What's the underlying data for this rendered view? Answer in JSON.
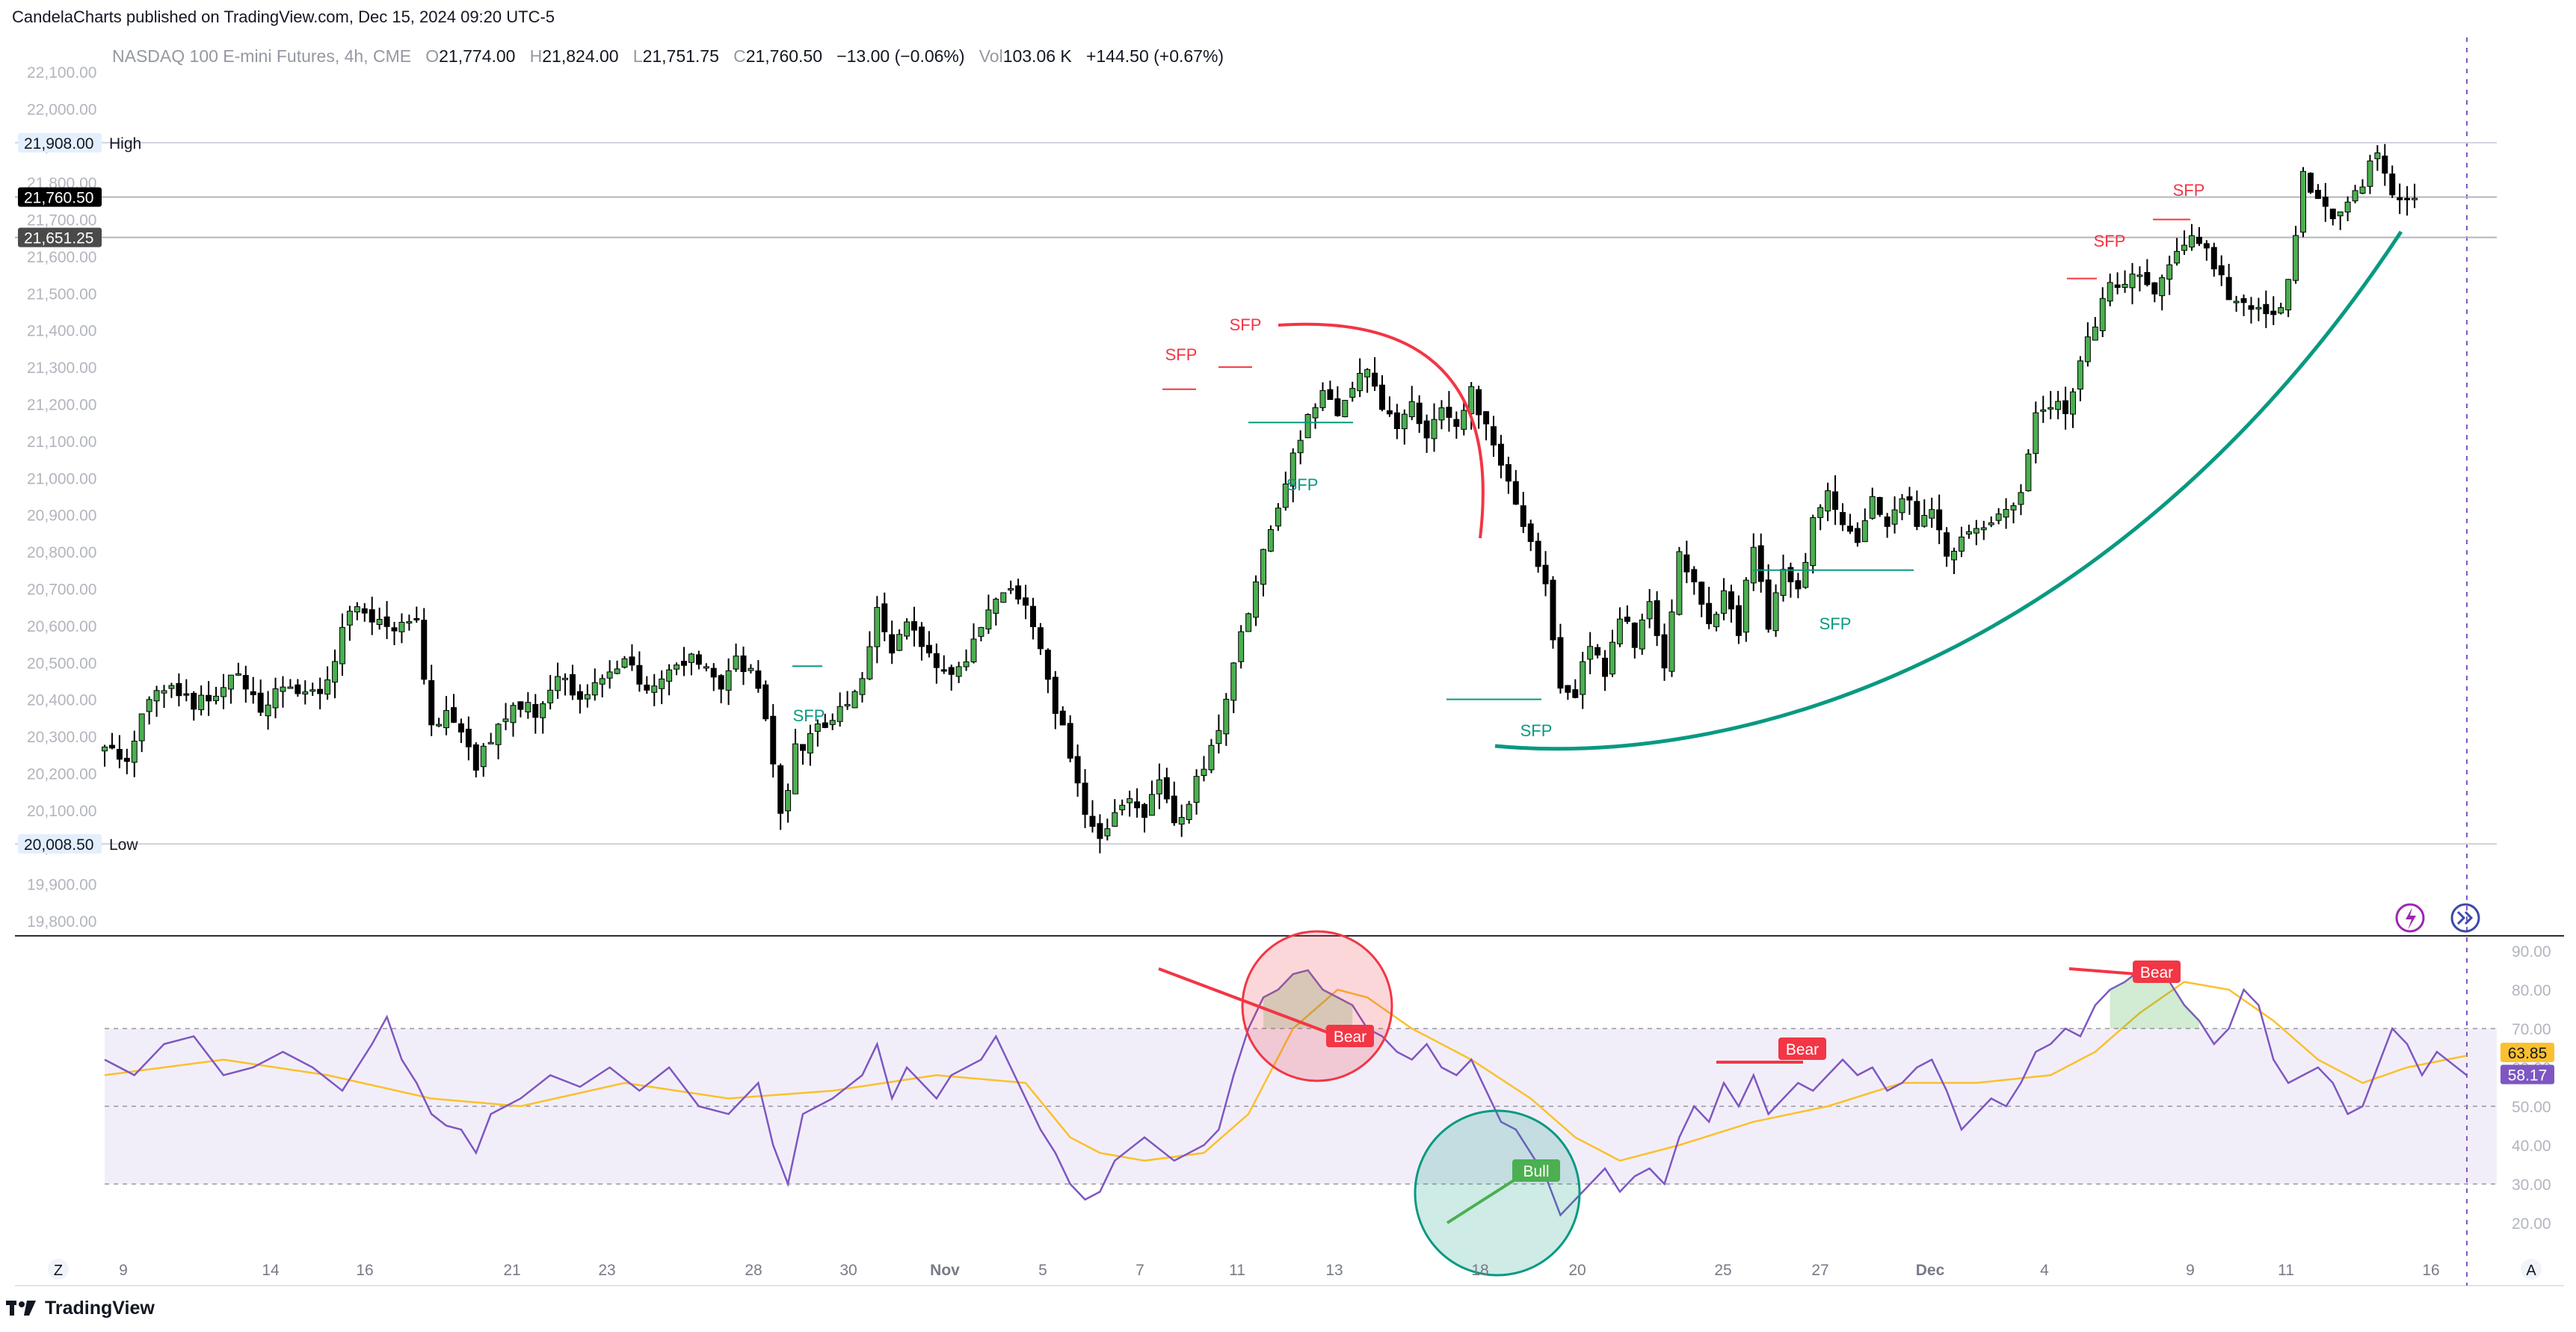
{
  "header": {
    "published": "CandelaCharts published on TradingView.com, Dec 15, 2024 09:20 UTC-5"
  },
  "legend": {
    "symbol": "NASDAQ 100 E-mini Futures, 4h, CME",
    "o_label": "O",
    "o": "21,774.00",
    "h_label": "H",
    "h": "21,824.00",
    "l_label": "L",
    "l": "21,751.75",
    "c_label": "C",
    "c": "21,760.50",
    "change": "−13.00 (−0.06%)",
    "vol_label": "Vol",
    "vol": "103.06 K",
    "vol_change": "+144.50 (+0.67%)"
  },
  "footer": {
    "brand": "TradingView",
    "z_button": "Z",
    "a_button": "A"
  },
  "colors": {
    "bull": "#26a69a",
    "bull_body": "#4caf50",
    "bear": "#000000",
    "annotation_red": "#f23645",
    "annotation_teal": "#089981",
    "rsi_line": "#7e57c2",
    "rsi_ma": "#fbc02d",
    "rsi_band": "#7e57c2"
  },
  "chart_data": [
    {
      "type": "candlestick",
      "title": "NASDAQ 100 E-mini Futures, 4h, CME",
      "ylim": [
        19750,
        22150
      ],
      "y_ticks": [
        "22,100.00",
        "22,000.00",
        "21,900.00",
        "21,800.00",
        "21,700.00",
        "21,600.00",
        "21,500.00",
        "21,400.00",
        "21,300.00",
        "21,200.00",
        "21,100.00",
        "21,000.00",
        "20,900.00",
        "20,800.00",
        "20,700.00",
        "20,600.00",
        "20,500.00",
        "20,400.00",
        "20,300.00",
        "20,200.00",
        "20,100.00",
        "20,000.00",
        "19,900.00",
        "19,800.00"
      ],
      "x_ticks": [
        "9",
        "14",
        "16",
        "21",
        "23",
        "28",
        "30",
        "Nov",
        "5",
        "7",
        "11",
        "13",
        "18",
        "20",
        "25",
        "27",
        "Dec",
        "4",
        "9",
        "11",
        "16"
      ],
      "price_labels": {
        "high_value": "21,908.00",
        "high_label": "High",
        "last": "21,760.50",
        "prev": "21,651.25",
        "low_value": "20,008.50",
        "low_label": "Low"
      },
      "close_path": [
        [
          0,
          20280
        ],
        [
          3,
          20240
        ],
        [
          6,
          20400
        ],
        [
          9,
          20450
        ],
        [
          12,
          20380
        ],
        [
          15,
          20420
        ],
        [
          18,
          20460
        ],
        [
          21,
          20380
        ],
        [
          24,
          20450
        ],
        [
          27,
          20420
        ],
        [
          30,
          20440
        ],
        [
          33,
          20650
        ],
        [
          36,
          20620
        ],
        [
          39,
          20590
        ],
        [
          42,
          20610
        ],
        [
          44,
          20330
        ],
        [
          46,
          20370
        ],
        [
          48,
          20330
        ],
        [
          50,
          20220
        ],
        [
          52,
          20300
        ],
        [
          55,
          20400
        ],
        [
          58,
          20360
        ],
        [
          61,
          20480
        ],
        [
          64,
          20380
        ],
        [
          67,
          20450
        ],
        [
          70,
          20500
        ],
        [
          73,
          20420
        ],
        [
          76,
          20470
        ],
        [
          79,
          20510
        ],
        [
          81,
          20490
        ],
        [
          83,
          20430
        ],
        [
          85,
          20510
        ],
        [
          87,
          20470
        ],
        [
          89,
          20350
        ],
        [
          91,
          20080
        ],
        [
          93,
          20260
        ],
        [
          96,
          20320
        ],
        [
          99,
          20380
        ],
        [
          102,
          20450
        ],
        [
          104,
          20640
        ],
        [
          106,
          20540
        ],
        [
          108,
          20600
        ],
        [
          110,
          20560
        ],
        [
          112,
          20500
        ],
        [
          115,
          20480
        ],
        [
          118,
          20600
        ],
        [
          120,
          20680
        ],
        [
          122,
          20720
        ],
        [
          124,
          20640
        ],
        [
          126,
          20520
        ],
        [
          128,
          20380
        ],
        [
          130,
          20260
        ],
        [
          132,
          20080
        ],
        [
          134,
          20020
        ],
        [
          136,
          20100
        ],
        [
          138,
          20140
        ],
        [
          140,
          20080
        ],
        [
          142,
          20180
        ],
        [
          144,
          20080
        ],
        [
          146,
          20120
        ],
        [
          148,
          20230
        ],
        [
          150,
          20320
        ],
        [
          152,
          20480
        ],
        [
          154,
          20650
        ],
        [
          156,
          20820
        ],
        [
          158,
          20920
        ],
        [
          160,
          21060
        ],
        [
          162,
          21160
        ],
        [
          164,
          21240
        ],
        [
          166,
          21180
        ],
        [
          168,
          21250
        ],
        [
          170,
          21300
        ],
        [
          172,
          21180
        ],
        [
          174,
          21130
        ],
        [
          176,
          21220
        ],
        [
          178,
          21100
        ],
        [
          180,
          21200
        ],
        [
          182,
          21130
        ],
        [
          184,
          21250
        ],
        [
          186,
          21130
        ],
        [
          188,
          21050
        ],
        [
          190,
          20940
        ],
        [
          192,
          20830
        ],
        [
          194,
          20710
        ],
        [
          196,
          20450
        ],
        [
          198,
          20420
        ],
        [
          200,
          20560
        ],
        [
          202,
          20480
        ],
        [
          204,
          20630
        ],
        [
          206,
          20560
        ],
        [
          208,
          20660
        ],
        [
          210,
          20500
        ],
        [
          212,
          20800
        ],
        [
          214,
          20720
        ],
        [
          216,
          20620
        ],
        [
          218,
          20680
        ],
        [
          220,
          20580
        ],
        [
          222,
          20830
        ],
        [
          224,
          20600
        ],
        [
          226,
          20760
        ],
        [
          228,
          20680
        ],
        [
          230,
          20880
        ],
        [
          232,
          20960
        ],
        [
          234,
          20880
        ],
        [
          236,
          20840
        ],
        [
          238,
          20960
        ],
        [
          240,
          20860
        ],
        [
          242,
          20960
        ],
        [
          244,
          20880
        ],
        [
          246,
          20920
        ],
        [
          248,
          20790
        ],
        [
          250,
          20840
        ],
        [
          252,
          20880
        ],
        [
          254,
          20880
        ],
        [
          256,
          20920
        ],
        [
          258,
          20950
        ],
        [
          260,
          21160
        ],
        [
          262,
          21200
        ],
        [
          264,
          21180
        ],
        [
          266,
          21320
        ],
        [
          268,
          21420
        ],
        [
          270,
          21520
        ],
        [
          272,
          21540
        ],
        [
          274,
          21530
        ],
        [
          276,
          21480
        ],
        [
          278,
          21570
        ],
        [
          280,
          21650
        ],
        [
          282,
          21640
        ],
        [
          284,
          21580
        ],
        [
          286,
          21500
        ],
        [
          288,
          21460
        ],
        [
          290,
          21480
        ],
        [
          292,
          21430
        ],
        [
          294,
          21520
        ],
        [
          296,
          21820
        ],
        [
          298,
          21760
        ],
        [
          300,
          21700
        ],
        [
          302,
          21740
        ],
        [
          304,
          21800
        ],
        [
          306,
          21880
        ],
        [
          308,
          21774
        ],
        [
          309,
          21760
        ]
      ],
      "annotations": [
        "SFP",
        "SFP",
        "SFP",
        "SFP",
        "SFP",
        "SFP",
        "SFP",
        "SFP"
      ]
    },
    {
      "type": "line",
      "title": "RSI",
      "ylim": [
        15,
        95
      ],
      "y_ticks": [
        "90.00",
        "80.00",
        "70.00",
        "60.00",
        "50.00",
        "40.00",
        "30.00",
        "20.00"
      ],
      "band": [
        30,
        70
      ],
      "mid": 50,
      "last_values": {
        "ma": "63.85",
        "rsi": "58.17"
      },
      "rsi_path": [
        [
          0,
          62
        ],
        [
          4,
          58
        ],
        [
          8,
          66
        ],
        [
          12,
          68
        ],
        [
          16,
          58
        ],
        [
          20,
          60
        ],
        [
          24,
          64
        ],
        [
          28,
          60
        ],
        [
          32,
          54
        ],
        [
          36,
          66
        ],
        [
          38,
          73
        ],
        [
          40,
          62
        ],
        [
          42,
          56
        ],
        [
          44,
          48
        ],
        [
          46,
          45
        ],
        [
          48,
          44
        ],
        [
          50,
          38
        ],
        [
          52,
          48
        ],
        [
          56,
          52
        ],
        [
          60,
          58
        ],
        [
          64,
          55
        ],
        [
          68,
          60
        ],
        [
          72,
          54
        ],
        [
          76,
          60
        ],
        [
          80,
          50
        ],
        [
          84,
          48
        ],
        [
          88,
          56
        ],
        [
          90,
          40
        ],
        [
          92,
          30
        ],
        [
          94,
          48
        ],
        [
          98,
          52
        ],
        [
          102,
          58
        ],
        [
          104,
          66
        ],
        [
          106,
          52
        ],
        [
          108,
          60
        ],
        [
          110,
          56
        ],
        [
          112,
          52
        ],
        [
          114,
          58
        ],
        [
          118,
          62
        ],
        [
          120,
          68
        ],
        [
          122,
          60
        ],
        [
          124,
          52
        ],
        [
          126,
          44
        ],
        [
          128,
          38
        ],
        [
          130,
          30
        ],
        [
          132,
          26
        ],
        [
          134,
          28
        ],
        [
          136,
          36
        ],
        [
          140,
          42
        ],
        [
          144,
          36
        ],
        [
          148,
          40
        ],
        [
          150,
          44
        ],
        [
          152,
          58
        ],
        [
          154,
          70
        ],
        [
          156,
          78
        ],
        [
          158,
          80
        ],
        [
          160,
          84
        ],
        [
          162,
          85
        ],
        [
          164,
          80
        ],
        [
          166,
          78
        ],
        [
          168,
          76
        ],
        [
          170,
          70
        ],
        [
          172,
          68
        ],
        [
          174,
          64
        ],
        [
          176,
          62
        ],
        [
          178,
          66
        ],
        [
          180,
          60
        ],
        [
          182,
          58
        ],
        [
          184,
          62
        ],
        [
          186,
          54
        ],
        [
          188,
          46
        ],
        [
          190,
          44
        ],
        [
          192,
          38
        ],
        [
          194,
          32
        ],
        [
          196,
          22
        ],
        [
          198,
          26
        ],
        [
          200,
          30
        ],
        [
          202,
          34
        ],
        [
          204,
          28
        ],
        [
          206,
          32
        ],
        [
          208,
          34
        ],
        [
          210,
          30
        ],
        [
          212,
          42
        ],
        [
          214,
          50
        ],
        [
          216,
          46
        ],
        [
          218,
          56
        ],
        [
          220,
          50
        ],
        [
          222,
          58
        ],
        [
          224,
          48
        ],
        [
          226,
          52
        ],
        [
          228,
          56
        ],
        [
          230,
          54
        ],
        [
          232,
          58
        ],
        [
          234,
          62
        ],
        [
          236,
          58
        ],
        [
          238,
          60
        ],
        [
          240,
          54
        ],
        [
          242,
          56
        ],
        [
          244,
          60
        ],
        [
          246,
          62
        ],
        [
          248,
          54
        ],
        [
          250,
          44
        ],
        [
          252,
          48
        ],
        [
          254,
          52
        ],
        [
          256,
          50
        ],
        [
          258,
          56
        ],
        [
          260,
          64
        ],
        [
          262,
          66
        ],
        [
          264,
          70
        ],
        [
          266,
          68
        ],
        [
          268,
          76
        ],
        [
          270,
          80
        ],
        [
          272,
          82
        ],
        [
          274,
          85
        ],
        [
          276,
          84
        ],
        [
          278,
          82
        ],
        [
          280,
          76
        ],
        [
          282,
          72
        ],
        [
          284,
          66
        ],
        [
          286,
          70
        ],
        [
          288,
          80
        ],
        [
          290,
          76
        ],
        [
          292,
          62
        ],
        [
          294,
          56
        ],
        [
          296,
          58
        ],
        [
          298,
          60
        ],
        [
          300,
          56
        ],
        [
          302,
          48
        ],
        [
          304,
          50
        ],
        [
          306,
          60
        ],
        [
          308,
          70
        ],
        [
          310,
          66
        ],
        [
          312,
          58
        ],
        [
          314,
          64
        ],
        [
          318,
          58
        ]
      ],
      "ma_path": [
        [
          0,
          58
        ],
        [
          16,
          62
        ],
        [
          30,
          58
        ],
        [
          44,
          52
        ],
        [
          56,
          50
        ],
        [
          70,
          56
        ],
        [
          84,
          52
        ],
        [
          98,
          54
        ],
        [
          112,
          58
        ],
        [
          124,
          56
        ],
        [
          130,
          42
        ],
        [
          134,
          38
        ],
        [
          140,
          36
        ],
        [
          148,
          38
        ],
        [
          154,
          48
        ],
        [
          160,
          70
        ],
        [
          166,
          80
        ],
        [
          170,
          78
        ],
        [
          176,
          70
        ],
        [
          184,
          62
        ],
        [
          192,
          52
        ],
        [
          198,
          42
        ],
        [
          204,
          36
        ],
        [
          212,
          40
        ],
        [
          222,
          46
        ],
        [
          232,
          50
        ],
        [
          242,
          56
        ],
        [
          252,
          56
        ],
        [
          262,
          58
        ],
        [
          268,
          64
        ],
        [
          274,
          74
        ],
        [
          280,
          82
        ],
        [
          286,
          80
        ],
        [
          292,
          72
        ],
        [
          298,
          62
        ],
        [
          304,
          56
        ],
        [
          310,
          60
        ],
        [
          318,
          63
        ]
      ],
      "labels": [
        "Bear",
        "Bull",
        "Bear",
        "Bear"
      ]
    }
  ]
}
